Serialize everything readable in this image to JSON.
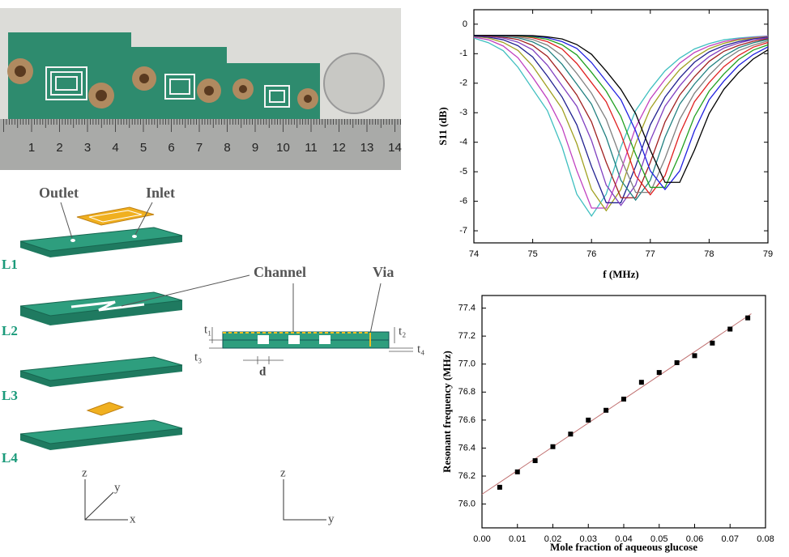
{
  "photo": {
    "ruler": [
      "1",
      "2",
      "3",
      "4",
      "5",
      "6",
      "7",
      "8",
      "9",
      "10",
      "11",
      "12",
      "13",
      "14"
    ]
  },
  "diagram": {
    "outlet": "Outlet",
    "inlet": "Inlet",
    "channel": "Channel",
    "via": "Via",
    "d": "d",
    "layers": [
      "L1",
      "L2",
      "L3",
      "L4"
    ],
    "thickness": [
      "t₁",
      "t₂",
      "t₃",
      "t₄"
    ],
    "axes_left": [
      "z",
      "y",
      "x"
    ],
    "axes_right": [
      "z",
      "y"
    ]
  },
  "chart_data": [
    {
      "type": "line",
      "xlabel": "f (MHz)",
      "ylabel": "S11 (dB)",
      "x": [
        74,
        74.25,
        74.5,
        74.75,
        75,
        75.25,
        75.5,
        75.75,
        76,
        76.25,
        76.5,
        76.75,
        77,
        77.25,
        77.5,
        77.75,
        78,
        78.25,
        78.5,
        78.75,
        79
      ],
      "xlim": [
        74,
        79
      ],
      "ylim": [
        -7.41,
        0.49
      ],
      "xticks": [
        74,
        75,
        76,
        77,
        78,
        79
      ],
      "yticks": [
        0,
        -1,
        -2,
        -3,
        -4,
        -5,
        -6,
        -7
      ],
      "series": [
        {
          "color": "#3fbfc0",
          "values": [
            -0.47,
            -0.63,
            -0.9,
            -1.46,
            -2.2,
            -2.93,
            -4.16,
            -5.76,
            -6.5,
            -5.76,
            -4.16,
            -2.93,
            -2.2,
            -1.58,
            -1.15,
            -0.84,
            -0.66,
            -0.53,
            -0.47,
            -0.43,
            -0.4
          ]
        },
        {
          "color": "#c040c0",
          "values": [
            -0.44,
            -0.53,
            -0.74,
            -1.14,
            -1.8,
            -2.53,
            -3.5,
            -4.96,
            -6.23,
            -6.23,
            -4.96,
            -3.5,
            -2.53,
            -1.87,
            -1.32,
            -0.96,
            -0.74,
            -0.59,
            -0.5,
            -0.45,
            -0.41
          ]
        },
        {
          "color": "#a0a020",
          "values": [
            -0.41,
            -0.47,
            -0.62,
            -0.89,
            -1.42,
            -2.14,
            -2.86,
            -4.05,
            -5.6,
            -6.32,
            -5.6,
            -4.05,
            -2.86,
            -2.14,
            -1.54,
            -1.13,
            -0.83,
            -0.65,
            -0.53,
            -0.47,
            -0.43
          ]
        },
        {
          "color": "#202090",
          "values": [
            -0.4,
            -0.44,
            -0.53,
            -0.73,
            -1.11,
            -1.76,
            -2.47,
            -3.41,
            -4.82,
            -6.05,
            -6.05,
            -4.82,
            -3.41,
            -2.47,
            -1.82,
            -1.29,
            -0.94,
            -0.73,
            -0.59,
            -0.5,
            -0.44
          ]
        },
        {
          "color": "#8040c0",
          "values": [
            -0.38,
            -0.41,
            -0.47,
            -0.61,
            -0.87,
            -1.39,
            -2.09,
            -2.78,
            -3.94,
            -5.45,
            -6.14,
            -5.45,
            -3.94,
            -2.78,
            -2.09,
            -1.51,
            -1.1,
            -0.81,
            -0.64,
            -0.52,
            -0.47
          ]
        },
        {
          "color": "#a02020",
          "values": [
            -0.38,
            -0.4,
            -0.44,
            -0.52,
            -0.72,
            -1.09,
            -1.72,
            -2.4,
            -3.31,
            -4.68,
            -5.88,
            -5.88,
            -4.68,
            -3.31,
            -2.4,
            -1.78,
            -1.26,
            -0.92,
            -0.72,
            -0.58,
            -0.49
          ]
        },
        {
          "color": "#208080",
          "values": [
            -0.38,
            -0.38,
            -0.41,
            -0.46,
            -0.6,
            -0.85,
            -1.36,
            -2.03,
            -2.71,
            -3.83,
            -5.29,
            -5.96,
            -5.29,
            -3.83,
            -2.71,
            -2.03,
            -1.47,
            -1.08,
            -0.8,
            -0.63,
            -0.52
          ]
        },
        {
          "color": "#808080",
          "values": [
            -0.38,
            -0.38,
            -0.39,
            -0.43,
            -0.52,
            -0.71,
            -1.07,
            -1.67,
            -2.34,
            -3.22,
            -4.55,
            -5.7,
            -5.7,
            -4.55,
            -3.22,
            -2.34,
            -1.73,
            -1.23,
            -0.9,
            -0.71,
            -0.57
          ]
        },
        {
          "color": "#e02020",
          "values": [
            -0.38,
            -0.38,
            -0.38,
            -0.4,
            -0.46,
            -0.59,
            -0.84,
            -1.33,
            -1.98,
            -2.63,
            -3.72,
            -5.13,
            -5.78,
            -5.13,
            -3.72,
            -2.63,
            -1.98,
            -1.44,
            -1.06,
            -0.78,
            -0.62
          ]
        },
        {
          "color": "#20a020",
          "values": [
            -0.38,
            -0.38,
            -0.38,
            -0.39,
            -0.43,
            -0.51,
            -0.7,
            -1.04,
            -1.63,
            -2.27,
            -3.13,
            -4.41,
            -5.53,
            -5.53,
            -4.41,
            -3.13,
            -2.27,
            -1.69,
            -1.2,
            -0.88,
            -0.7
          ]
        },
        {
          "color": "#2020e0",
          "values": [
            -0.38,
            -0.38,
            -0.38,
            -0.38,
            -0.4,
            -0.46,
            -0.59,
            -0.82,
            -1.3,
            -1.93,
            -2.56,
            -3.61,
            -4.97,
            -5.6,
            -4.97,
            -3.61,
            -2.56,
            -1.93,
            -1.4,
            -1.03,
            -0.77
          ]
        },
        {
          "color": "#000000",
          "values": [
            -0.38,
            -0.38,
            -0.38,
            -0.38,
            -0.39,
            -0.43,
            -0.5,
            -0.69,
            -1.02,
            -1.59,
            -2.21,
            -3.03,
            -4.27,
            -5.36,
            -5.36,
            -4.27,
            -3.03,
            -2.21,
            -1.64,
            -1.18,
            -0.87
          ]
        }
      ]
    },
    {
      "type": "scatter",
      "xlabel": "Mole fraction of aqueous glucose",
      "ylabel": "Resonant frequency (MHz)",
      "x": [
        0.005,
        0.01,
        0.015,
        0.02,
        0.025,
        0.03,
        0.035,
        0.04,
        0.045,
        0.05,
        0.055,
        0.06,
        0.065,
        0.07,
        0.075
      ],
      "xlim": [
        0,
        0.08
      ],
      "ylim": [
        75.83,
        77.49
      ],
      "xticks": [
        {
          "value": 0,
          "label": "0.00"
        },
        0.01,
        0.02,
        0.03,
        0.04,
        0.05,
        0.06,
        0.07,
        0.08
      ],
      "yticks": [
        {
          "value": 76,
          "label": "76.0"
        },
        76.2,
        76.4,
        76.6,
        76.8,
        {
          "value": 77,
          "label": "77.0"
        },
        77.2,
        77.4
      ],
      "series": [
        {
          "color": "#000000",
          "values": [
            76.12,
            76.23,
            76.31,
            76.41,
            76.5,
            76.6,
            76.67,
            76.75,
            76.87,
            76.94,
            77.01,
            77.06,
            77.15,
            77.25,
            77.33
          ]
        }
      ],
      "trend": {
        "color": "#c07070",
        "x": [
          0,
          0.076
        ],
        "values": [
          76.07,
          77.36
        ]
      }
    }
  ]
}
